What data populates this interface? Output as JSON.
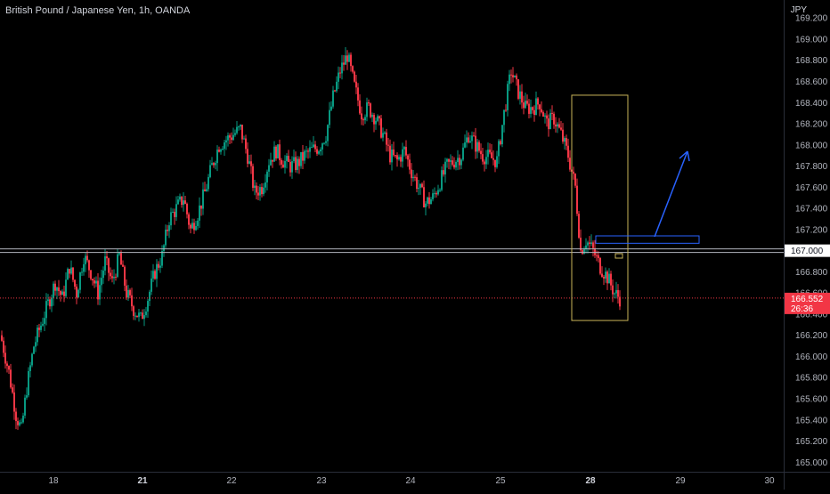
{
  "header": {
    "symbol_title": "British Pound / Japanese Yen, 1h, OANDA",
    "currency": "JPY"
  },
  "price_scale": {
    "ticks": [
      "169.200",
      "169.000",
      "168.800",
      "168.600",
      "168.400",
      "168.200",
      "168.000",
      "167.800",
      "167.600",
      "167.400",
      "167.200",
      "167.000",
      "166.800",
      "166.600",
      "166.400",
      "166.200",
      "166.000",
      "165.800",
      "165.600",
      "165.400",
      "165.200",
      "165.000"
    ],
    "tick_values": [
      169.2,
      169.0,
      168.8,
      168.6,
      168.4,
      168.2,
      168.0,
      167.8,
      167.6,
      167.4,
      167.2,
      167.0,
      166.8,
      166.6,
      166.4,
      166.2,
      166.0,
      165.8,
      165.6,
      165.4,
      165.2,
      165.0
    ],
    "ylim": [
      164.91,
      169.37
    ]
  },
  "time_scale": {
    "labels": [
      "18",
      "21",
      "22",
      "23",
      "24",
      "25",
      "28",
      "29",
      "30"
    ],
    "bold_labels": [
      "21",
      "28"
    ]
  },
  "horizontal_level": {
    "price": 167.0,
    "label": "167.000"
  },
  "last_price": {
    "price": 166.552,
    "label": "166.552",
    "countdown": "26:36"
  },
  "colors": {
    "up": "#089981",
    "down": "#f23645",
    "background": "#000000",
    "level_line": "#b2b5be",
    "box_yellow": "#c9b458",
    "box_blue": "#2962ff",
    "arrow_blue": "#2962ff",
    "price_badge": "#f23645"
  },
  "chart_data": {
    "type": "candlestick",
    "title": "British Pound / Japanese Yen, 1h, OANDA",
    "xlabel": "",
    "ylabel": "JPY",
    "x_categories": [
      "18",
      "21",
      "22",
      "23",
      "24",
      "25",
      "28",
      "29",
      "30"
    ],
    "series": [
      {
        "name": "British Pound / Japanese Yen",
        "anchors": [
          [
            0,
            166.15
          ],
          [
            4,
            165.85
          ],
          [
            8,
            165.45
          ],
          [
            11,
            165.3
          ],
          [
            14,
            165.7
          ],
          [
            18,
            166.1
          ],
          [
            22,
            166.3
          ],
          [
            26,
            166.5
          ],
          [
            30,
            166.7
          ],
          [
            34,
            166.55
          ],
          [
            38,
            166.85
          ],
          [
            42,
            166.6
          ],
          [
            46,
            166.95
          ],
          [
            50,
            166.8
          ],
          [
            54,
            166.6
          ],
          [
            58,
            166.9
          ],
          [
            62,
            166.7
          ],
          [
            66,
            166.95
          ],
          [
            70,
            166.6
          ],
          [
            74,
            166.45
          ],
          [
            78,
            166.35
          ],
          [
            82,
            166.55
          ],
          [
            86,
            166.8
          ],
          [
            90,
            166.95
          ],
          [
            94,
            167.3
          ],
          [
            98,
            167.4
          ],
          [
            102,
            167.5
          ],
          [
            106,
            167.2
          ],
          [
            110,
            167.35
          ],
          [
            114,
            167.55
          ],
          [
            118,
            167.8
          ],
          [
            122,
            168.0
          ],
          [
            126,
            168.05
          ],
          [
            130,
            168.1
          ],
          [
            134,
            168.15
          ],
          [
            138,
            167.9
          ],
          [
            142,
            167.55
          ],
          [
            146,
            167.6
          ],
          [
            150,
            167.85
          ],
          [
            154,
            167.95
          ],
          [
            158,
            167.85
          ],
          [
            162,
            167.8
          ],
          [
            166,
            167.82
          ],
          [
            170,
            167.9
          ],
          [
            174,
            167.95
          ],
          [
            178,
            167.98
          ],
          [
            182,
            168.1
          ],
          [
            186,
            168.45
          ],
          [
            190,
            168.7
          ],
          [
            194,
            168.85
          ],
          [
            198,
            168.55
          ],
          [
            202,
            168.3
          ],
          [
            206,
            168.35
          ],
          [
            210,
            168.25
          ],
          [
            214,
            168.1
          ],
          [
            218,
            167.9
          ],
          [
            222,
            167.85
          ],
          [
            226,
            167.95
          ],
          [
            230,
            167.75
          ],
          [
            234,
            167.6
          ],
          [
            238,
            167.45
          ],
          [
            242,
            167.5
          ],
          [
            246,
            167.65
          ],
          [
            250,
            167.8
          ],
          [
            254,
            167.85
          ],
          [
            258,
            167.9
          ],
          [
            262,
            168.1
          ],
          [
            266,
            168.0
          ],
          [
            270,
            167.9
          ],
          [
            274,
            167.88
          ],
          [
            278,
            167.85
          ],
          [
            282,
            168.3
          ],
          [
            286,
            168.7
          ],
          [
            290,
            168.5
          ],
          [
            294,
            168.35
          ],
          [
            298,
            168.35
          ],
          [
            302,
            168.4
          ],
          [
            306,
            168.2
          ],
          [
            310,
            168.25
          ],
          [
            314,
            168.1
          ],
          [
            318,
            167.9
          ],
          [
            322,
            167.6
          ],
          [
            325,
            167.0
          ],
          [
            328,
            167.1
          ],
          [
            332,
            167.0
          ],
          [
            336,
            166.85
          ],
          [
            340,
            166.75
          ],
          [
            344,
            166.6
          ],
          [
            347,
            166.55
          ]
        ]
      }
    ],
    "annotations": [
      {
        "type": "rectangle",
        "color": "yellow",
        "price_top": 168.47,
        "price_bottom": 166.34
      },
      {
        "type": "rectangle",
        "color": "blue",
        "price_top": 167.14,
        "price_bottom": 167.07
      },
      {
        "type": "arrow",
        "color": "blue",
        "direction": "up"
      },
      {
        "type": "horizontal_line",
        "price": 167.0
      }
    ],
    "ylim": [
      164.91,
      169.37
    ],
    "grid": false
  }
}
